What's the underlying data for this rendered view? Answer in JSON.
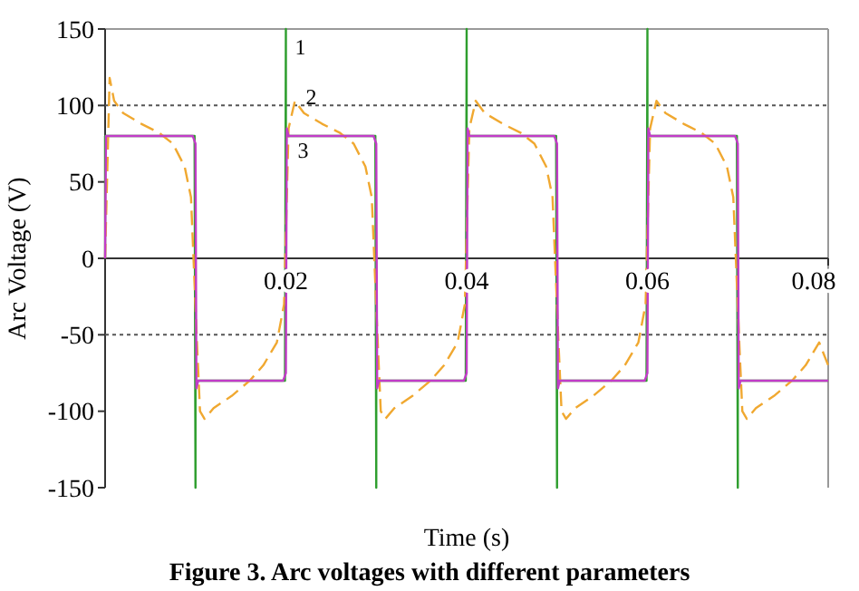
{
  "chart_data": {
    "type": "line",
    "title": "Figure 3. Arc voltages with different parameters",
    "xlabel": "Time (s)",
    "ylabel": "Arc Voltage (V)",
    "xlim": [
      0,
      0.08
    ],
    "ylim": [
      -150,
      150
    ],
    "xticks": [
      0.02,
      0.04,
      0.06,
      0.08
    ],
    "yticks": [
      -150,
      -100,
      -50,
      0,
      50,
      100,
      150
    ],
    "grid": false,
    "ref_lines": [
      {
        "axis": "y",
        "value": 100,
        "line_style": "dotted",
        "color": "#555555"
      },
      {
        "axis": "y",
        "value": -50,
        "line_style": "dotted",
        "color": "#555555"
      }
    ],
    "series": [
      {
        "name": "1",
        "color": "#2e9e2e",
        "line_style": "solid",
        "x": [
          0,
          0,
          0.0099,
          0.01,
          0.01,
          0.0199,
          0.02,
          0.02,
          0.0299,
          0.03,
          0.03,
          0.0399,
          0.04,
          0.04,
          0.0499,
          0.05,
          0.05,
          0.0599,
          0.06,
          0.06,
          0.0699,
          0.07,
          0.07,
          0.08
        ],
        "values": [
          0,
          80,
          80,
          -150,
          -80,
          -80,
          150,
          80,
          80,
          -150,
          -80,
          -80,
          150,
          80,
          80,
          -150,
          -80,
          -80,
          150,
          80,
          80,
          -150,
          -80,
          -80
        ]
      },
      {
        "name": "2",
        "color": "#f0a830",
        "line_style": "dashed",
        "x": [
          0,
          0.0005,
          0.001,
          0.002,
          0.004,
          0.006,
          0.0075,
          0.0088,
          0.0095,
          0.0102,
          0.0105,
          0.011,
          0.012,
          0.014,
          0.016,
          0.0175,
          0.019,
          0.0198,
          0.0203,
          0.021,
          0.022,
          0.024,
          0.026,
          0.0275,
          0.0288,
          0.0295,
          0.0302,
          0.0305,
          0.031,
          0.032,
          0.034,
          0.036,
          0.0375,
          0.039,
          0.0398,
          0.0403,
          0.041,
          0.042,
          0.044,
          0.046,
          0.0475,
          0.0488,
          0.0495,
          0.0502,
          0.0505,
          0.051,
          0.052,
          0.054,
          0.056,
          0.0575,
          0.059,
          0.0598,
          0.0603,
          0.061,
          0.062,
          0.064,
          0.066,
          0.0675,
          0.0688,
          0.0695,
          0.0702,
          0.0705,
          0.071,
          0.072,
          0.074,
          0.076,
          0.0775,
          0.079,
          0.08
        ],
        "values": [
          0,
          118,
          103,
          95,
          88,
          82,
          75,
          60,
          40,
          -60,
          -100,
          -105,
          -98,
          -90,
          -80,
          -70,
          -55,
          -30,
          85,
          103,
          95,
          88,
          82,
          75,
          60,
          40,
          -60,
          -100,
          -105,
          -98,
          -90,
          -80,
          -70,
          -55,
          -30,
          85,
          103,
          95,
          88,
          82,
          75,
          60,
          40,
          -60,
          -100,
          -105,
          -98,
          -90,
          -80,
          -70,
          -55,
          -30,
          85,
          103,
          95,
          88,
          82,
          75,
          60,
          40,
          -60,
          -100,
          -105,
          -98,
          -90,
          -80,
          -70,
          -55,
          -70
        ]
      },
      {
        "name": "3",
        "color": "#c23cc8",
        "line_style": "solid",
        "x": [
          0,
          0.0001,
          0.0097,
          0.01,
          0.0101,
          0.0103,
          0.0197,
          0.02,
          0.0201,
          0.0203,
          0.0297,
          0.03,
          0.0301,
          0.0303,
          0.0397,
          0.04,
          0.0401,
          0.0403,
          0.0497,
          0.05,
          0.0501,
          0.0503,
          0.0597,
          0.06,
          0.0601,
          0.0603,
          0.0697,
          0.07,
          0.0701,
          0.0703,
          0.08
        ],
        "values": [
          0,
          80,
          80,
          75,
          -85,
          -80,
          -80,
          -75,
          85,
          80,
          80,
          75,
          -85,
          -80,
          -80,
          -75,
          85,
          80,
          80,
          75,
          -85,
          -80,
          -80,
          -75,
          85,
          80,
          80,
          75,
          -85,
          -80,
          -80
        ]
      }
    ]
  }
}
